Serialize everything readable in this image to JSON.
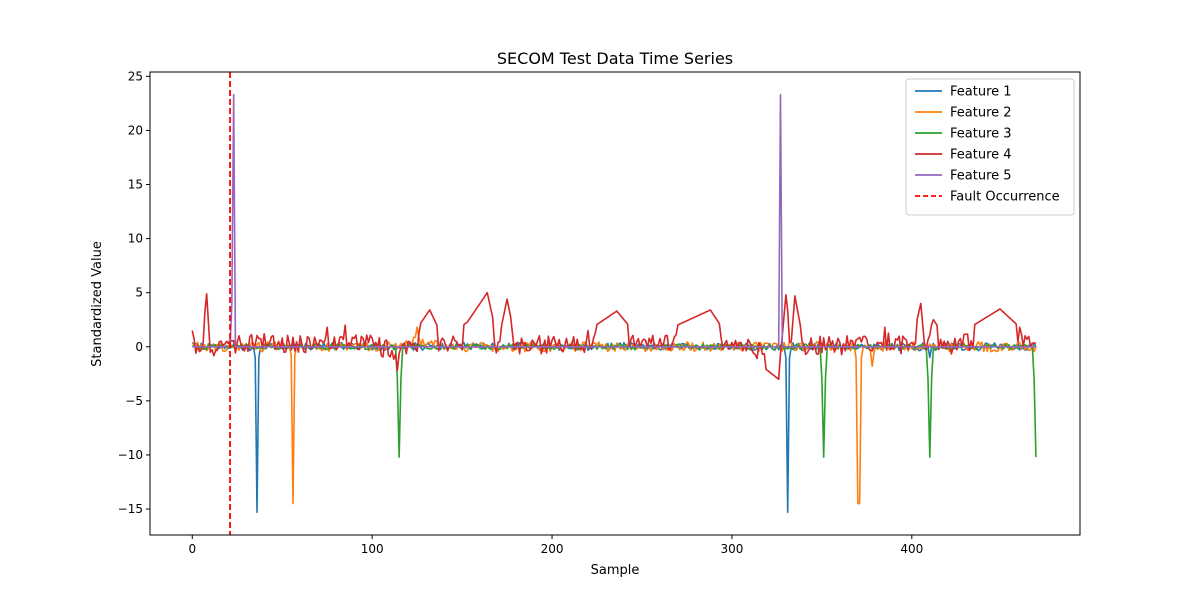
{
  "chart_data": {
    "type": "line",
    "title": "SECOM Test Data Time Series",
    "xlabel": "Sample",
    "ylabel": "Standardized Value",
    "xlim": [
      -23.5,
      493.5
    ],
    "ylim": [
      -17.4,
      25.4
    ],
    "x_ticks": [
      0,
      100,
      200,
      300,
      400
    ],
    "y_ticks": [
      -15,
      -10,
      -5,
      0,
      5,
      10,
      15,
      20,
      25
    ],
    "grid": false,
    "legend_position": "top-right",
    "x_range": [
      0,
      469
    ],
    "series": [
      {
        "name": "Feature 1",
        "color": "#1f77b4",
        "baseline_amplitude": 0.35,
        "points": [
          [
            0,
            0.4
          ],
          [
            10,
            0.2
          ],
          [
            20,
            0.0
          ],
          [
            34,
            0.0
          ],
          [
            35,
            -1.0
          ],
          [
            36,
            -15.3
          ],
          [
            37,
            -1.0
          ],
          [
            38,
            0.0
          ],
          [
            60,
            0.0
          ],
          [
            95,
            0.3
          ],
          [
            110,
            0.0
          ],
          [
            150,
            0.2
          ],
          [
            200,
            0.0
          ],
          [
            250,
            0.2
          ],
          [
            300,
            0.0
          ],
          [
            329,
            0.0
          ],
          [
            330,
            -1.0
          ],
          [
            331,
            -15.3
          ],
          [
            332,
            -1.0
          ],
          [
            333,
            0.0
          ],
          [
            380,
            0.0
          ],
          [
            409,
            0.0
          ],
          [
            410,
            -1.0
          ],
          [
            411,
            0.0
          ],
          [
            440,
            0.0
          ],
          [
            469,
            0.0
          ]
        ]
      },
      {
        "name": "Feature 2",
        "color": "#ff7f0e",
        "baseline_amplitude": 0.45,
        "points": [
          [
            0,
            0.3
          ],
          [
            20,
            0.0
          ],
          [
            54,
            0.0
          ],
          [
            55,
            -0.8
          ],
          [
            56,
            -14.5
          ],
          [
            57,
            -0.8
          ],
          [
            58,
            0.0
          ],
          [
            100,
            0.0
          ],
          [
            125,
            1.8
          ],
          [
            150,
            0.0
          ],
          [
            200,
            0.0
          ],
          [
            250,
            0.0
          ],
          [
            300,
            0.0
          ],
          [
            368,
            0.0
          ],
          [
            369,
            -1.0
          ],
          [
            370,
            -14.5
          ],
          [
            371,
            -14.5
          ],
          [
            372,
            -1.0
          ],
          [
            373,
            0.0
          ],
          [
            378,
            -1.8
          ],
          [
            380,
            0.0
          ],
          [
            420,
            0.0
          ],
          [
            469,
            0.0
          ]
        ]
      },
      {
        "name": "Feature 3",
        "color": "#2ca02c",
        "baseline_amplitude": 0.25,
        "points": [
          [
            0,
            0.0
          ],
          [
            50,
            0.0
          ],
          [
            113,
            0.0
          ],
          [
            114,
            -3.0
          ],
          [
            115,
            -10.2
          ],
          [
            116,
            -3.0
          ],
          [
            117,
            0.0
          ],
          [
            200,
            0.0
          ],
          [
            300,
            0.0
          ],
          [
            349,
            0.0
          ],
          [
            350,
            -3.0
          ],
          [
            351,
            -10.2
          ],
          [
            352,
            -3.0
          ],
          [
            353,
            0.0
          ],
          [
            408,
            0.0
          ],
          [
            409,
            -3.0
          ],
          [
            410,
            -10.2
          ],
          [
            411,
            -3.0
          ],
          [
            412,
            0.0
          ],
          [
            467,
            0.0
          ],
          [
            468,
            -3.0
          ],
          [
            469,
            -10.2
          ]
        ]
      },
      {
        "name": "Feature 4",
        "color": "#d62728",
        "baseline_amplitude": 0.9,
        "points": [
          [
            0,
            1.5
          ],
          [
            2,
            -0.6
          ],
          [
            5,
            -0.3
          ],
          [
            8,
            4.9
          ],
          [
            10,
            -0.5
          ],
          [
            20,
            0.3
          ],
          [
            40,
            1.2
          ],
          [
            60,
            1.0
          ],
          [
            75,
            1.8
          ],
          [
            85,
            2.0
          ],
          [
            100,
            0.8
          ],
          [
            114,
            -2.2
          ],
          [
            120,
            0.5
          ],
          [
            132,
            3.4
          ],
          [
            140,
            0.6
          ],
          [
            153,
            2.3
          ],
          [
            164,
            5.0
          ],
          [
            170,
            0.4
          ],
          [
            175,
            4.4
          ],
          [
            180,
            0.3
          ],
          [
            200,
            0.6
          ],
          [
            220,
            1.5
          ],
          [
            236,
            3.3
          ],
          [
            250,
            0.5
          ],
          [
            288,
            3.4
          ],
          [
            300,
            0.4
          ],
          [
            326,
            -3.0
          ],
          [
            328,
            1.0
          ],
          [
            330,
            4.8
          ],
          [
            333,
            0.5
          ],
          [
            335,
            4.7
          ],
          [
            340,
            0.2
          ],
          [
            360,
            0.4
          ],
          [
            385,
            1.8
          ],
          [
            400,
            0.4
          ],
          [
            405,
            4.0
          ],
          [
            407,
            0.3
          ],
          [
            412,
            2.5
          ],
          [
            420,
            0.5
          ],
          [
            449,
            3.5
          ],
          [
            460,
            1.8
          ],
          [
            469,
            0.3
          ]
        ]
      },
      {
        "name": "Feature 5",
        "color": "#9467bd",
        "baseline_amplitude": 0.0,
        "points": [
          [
            0,
            0.0
          ],
          [
            21,
            0.0
          ],
          [
            22,
            4.0
          ],
          [
            23,
            23.3
          ],
          [
            24,
            0.0
          ],
          [
            326,
            0.0
          ],
          [
            327,
            23.3
          ],
          [
            328,
            0.0
          ],
          [
            469,
            0.0
          ]
        ]
      },
      {
        "name": "Fault Occurrence",
        "color": "#ff0000",
        "type": "vline",
        "x": 21
      }
    ]
  }
}
